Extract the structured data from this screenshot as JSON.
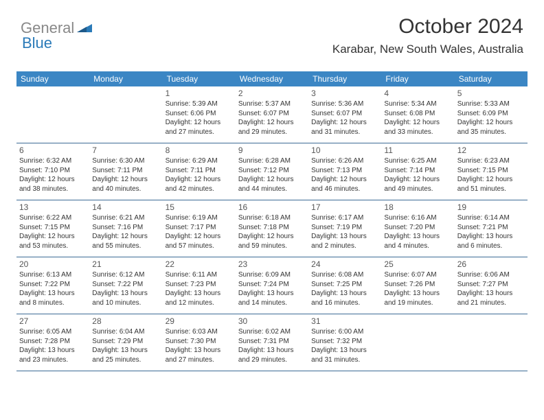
{
  "logo": {
    "gray": "General",
    "blue": "Blue"
  },
  "title": "October 2024",
  "location": "Karabar, New South Wales, Australia",
  "colors": {
    "headerBar": "#3b86c4",
    "weekBorder": "#3b6a94",
    "textDark": "#333333",
    "textMuted": "#555555",
    "logoGray": "#888888",
    "logoBlue": "#2a7ab8",
    "background": "#ffffff"
  },
  "dayNames": [
    "Sunday",
    "Monday",
    "Tuesday",
    "Wednesday",
    "Thursday",
    "Friday",
    "Saturday"
  ],
  "weeks": [
    [
      null,
      null,
      {
        "d": "1",
        "sr": "5:39 AM",
        "ss": "6:06 PM",
        "dl": "12 hours and 27 minutes."
      },
      {
        "d": "2",
        "sr": "5:37 AM",
        "ss": "6:07 PM",
        "dl": "12 hours and 29 minutes."
      },
      {
        "d": "3",
        "sr": "5:36 AM",
        "ss": "6:07 PM",
        "dl": "12 hours and 31 minutes."
      },
      {
        "d": "4",
        "sr": "5:34 AM",
        "ss": "6:08 PM",
        "dl": "12 hours and 33 minutes."
      },
      {
        "d": "5",
        "sr": "5:33 AM",
        "ss": "6:09 PM",
        "dl": "12 hours and 35 minutes."
      }
    ],
    [
      {
        "d": "6",
        "sr": "6:32 AM",
        "ss": "7:10 PM",
        "dl": "12 hours and 38 minutes."
      },
      {
        "d": "7",
        "sr": "6:30 AM",
        "ss": "7:11 PM",
        "dl": "12 hours and 40 minutes."
      },
      {
        "d": "8",
        "sr": "6:29 AM",
        "ss": "7:11 PM",
        "dl": "12 hours and 42 minutes."
      },
      {
        "d": "9",
        "sr": "6:28 AM",
        "ss": "7:12 PM",
        "dl": "12 hours and 44 minutes."
      },
      {
        "d": "10",
        "sr": "6:26 AM",
        "ss": "7:13 PM",
        "dl": "12 hours and 46 minutes."
      },
      {
        "d": "11",
        "sr": "6:25 AM",
        "ss": "7:14 PM",
        "dl": "12 hours and 49 minutes."
      },
      {
        "d": "12",
        "sr": "6:23 AM",
        "ss": "7:15 PM",
        "dl": "12 hours and 51 minutes."
      }
    ],
    [
      {
        "d": "13",
        "sr": "6:22 AM",
        "ss": "7:15 PM",
        "dl": "12 hours and 53 minutes."
      },
      {
        "d": "14",
        "sr": "6:21 AM",
        "ss": "7:16 PM",
        "dl": "12 hours and 55 minutes."
      },
      {
        "d": "15",
        "sr": "6:19 AM",
        "ss": "7:17 PM",
        "dl": "12 hours and 57 minutes."
      },
      {
        "d": "16",
        "sr": "6:18 AM",
        "ss": "7:18 PM",
        "dl": "12 hours and 59 minutes."
      },
      {
        "d": "17",
        "sr": "6:17 AM",
        "ss": "7:19 PM",
        "dl": "13 hours and 2 minutes."
      },
      {
        "d": "18",
        "sr": "6:16 AM",
        "ss": "7:20 PM",
        "dl": "13 hours and 4 minutes."
      },
      {
        "d": "19",
        "sr": "6:14 AM",
        "ss": "7:21 PM",
        "dl": "13 hours and 6 minutes."
      }
    ],
    [
      {
        "d": "20",
        "sr": "6:13 AM",
        "ss": "7:22 PM",
        "dl": "13 hours and 8 minutes."
      },
      {
        "d": "21",
        "sr": "6:12 AM",
        "ss": "7:22 PM",
        "dl": "13 hours and 10 minutes."
      },
      {
        "d": "22",
        "sr": "6:11 AM",
        "ss": "7:23 PM",
        "dl": "13 hours and 12 minutes."
      },
      {
        "d": "23",
        "sr": "6:09 AM",
        "ss": "7:24 PM",
        "dl": "13 hours and 14 minutes."
      },
      {
        "d": "24",
        "sr": "6:08 AM",
        "ss": "7:25 PM",
        "dl": "13 hours and 16 minutes."
      },
      {
        "d": "25",
        "sr": "6:07 AM",
        "ss": "7:26 PM",
        "dl": "13 hours and 19 minutes."
      },
      {
        "d": "26",
        "sr": "6:06 AM",
        "ss": "7:27 PM",
        "dl": "13 hours and 21 minutes."
      }
    ],
    [
      {
        "d": "27",
        "sr": "6:05 AM",
        "ss": "7:28 PM",
        "dl": "13 hours and 23 minutes."
      },
      {
        "d": "28",
        "sr": "6:04 AM",
        "ss": "7:29 PM",
        "dl": "13 hours and 25 minutes."
      },
      {
        "d": "29",
        "sr": "6:03 AM",
        "ss": "7:30 PM",
        "dl": "13 hours and 27 minutes."
      },
      {
        "d": "30",
        "sr": "6:02 AM",
        "ss": "7:31 PM",
        "dl": "13 hours and 29 minutes."
      },
      {
        "d": "31",
        "sr": "6:00 AM",
        "ss": "7:32 PM",
        "dl": "13 hours and 31 minutes."
      },
      null,
      null
    ]
  ],
  "labels": {
    "sunrise": "Sunrise: ",
    "sunset": "Sunset: ",
    "daylight": "Daylight: "
  }
}
